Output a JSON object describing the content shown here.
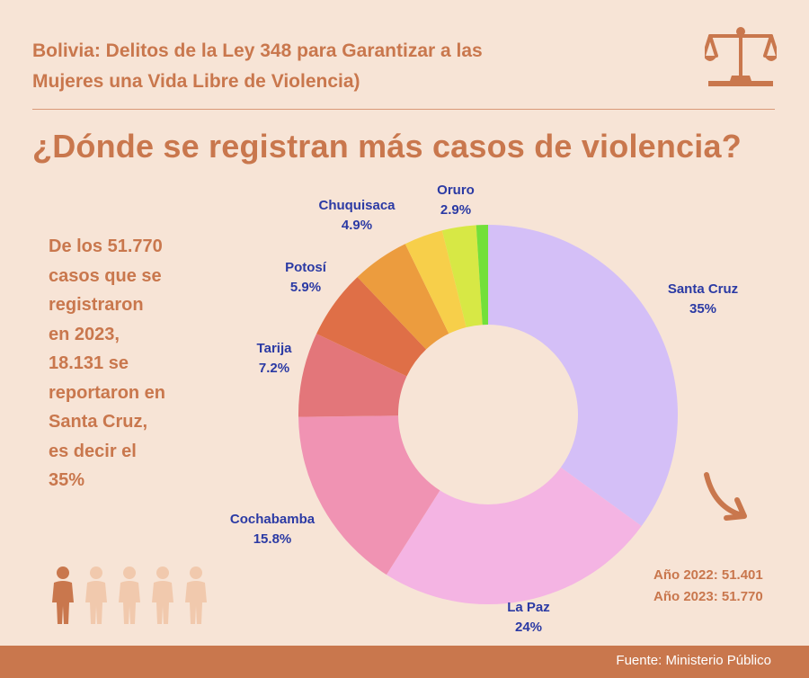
{
  "header": {
    "title_line1": "Bolivia: Delitos de la Ley 348 para Garantizar a las",
    "title_line2": "Mujeres una Vida Libre de Violencia)"
  },
  "question": "¿Dónde se registran más casos de violencia?",
  "side_text": [
    "De los 51.770",
    "casos que se",
    "registraron",
    "en 2023,",
    "18.131 se",
    "reportaron en",
    "Santa Cruz,",
    "es decir el",
    "35%"
  ],
  "years": {
    "y2022": "Año 2022: 51.401",
    "y2023": "Año 2023: 51.770"
  },
  "footer": {
    "source": "Fuente: Ministerio Público"
  },
  "icons": {
    "scale": "scale-of-justice-icon",
    "arrow": "curved-arrow-icon",
    "people": "people-icon"
  },
  "colors": {
    "accent": "#c9774d",
    "background": "#f7e4d6",
    "label": "#2b3aa4"
  },
  "chart_data": {
    "type": "pie",
    "variant": "donut",
    "title": "",
    "categories": [
      "Santa Cruz",
      "La Paz",
      "Cochabamba",
      "Tarija",
      "Potosí",
      "Chuquisaca",
      "",
      "Oruro",
      ""
    ],
    "values": [
      35,
      24,
      15.8,
      7.2,
      5.9,
      4.9,
      3.3,
      2.9,
      1.0
    ],
    "value_labels": [
      "35%",
      "24%",
      "15.8%",
      "7.2%",
      "5.9%",
      "4.9%",
      "",
      "2.9%",
      ""
    ],
    "colors": [
      "#d4bff7",
      "#f4b4e3",
      "#f093b3",
      "#e3767a",
      "#df6f47",
      "#ec9c3e",
      "#f7cf4a",
      "#d7e845",
      "#73e03a"
    ]
  }
}
